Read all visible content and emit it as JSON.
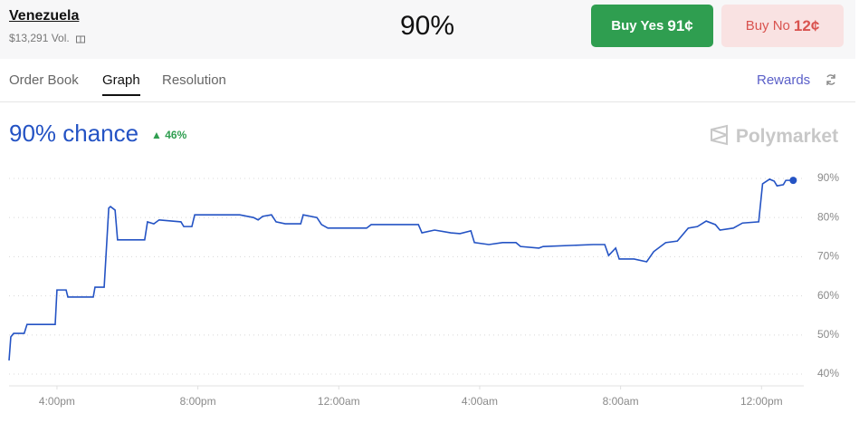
{
  "header": {
    "market": "Venezuela",
    "volume": "$13,291 Vol.",
    "probability": "90%"
  },
  "buttons": {
    "yes": {
      "label": "Buy Yes",
      "price": "91¢"
    },
    "no": {
      "label": "Buy No",
      "price": "12¢"
    }
  },
  "tabs": [
    "Order Book",
    "Graph",
    "Resolution"
  ],
  "rewards": "Rewards",
  "brand": "Polymarket",
  "chart_data": {
    "type": "line",
    "title": "90% chance",
    "change": "46%",
    "x": [
      14.64,
      14.69,
      14.77,
      15.07,
      15.15,
      15.95,
      16.0,
      16.26,
      16.31,
      17.03,
      17.08,
      17.34,
      17.47,
      17.52,
      17.65,
      17.72,
      18.49,
      18.57,
      18.75,
      18.9,
      19.52,
      19.6,
      19.83,
      19.91,
      21.19,
      21.58,
      21.71,
      21.84,
      22.09,
      22.22,
      22.48,
      22.92,
      22.99,
      23.38,
      23.51,
      23.69,
      24.79,
      24.92,
      26.26,
      26.36,
      26.72,
      27.18,
      27.44,
      27.75,
      27.85,
      28.26,
      28.65,
      29.03,
      29.16,
      29.68,
      29.8,
      31.22,
      31.55,
      31.66,
      31.86,
      31.96,
      32.38,
      32.74,
      32.94,
      33.28,
      33.61,
      33.92,
      34.18,
      34.43,
      34.69,
      34.82,
      35.2,
      35.46,
      35.92,
      36.03,
      36.23,
      36.36,
      36.44,
      36.62,
      36.69,
      36.9
    ],
    "series": [
      {
        "color": "#2453c4",
        "values": [
          43.5,
          49.5,
          50.4,
          50.4,
          52.7,
          52.7,
          61.5,
          61.5,
          59.7,
          59.7,
          62.2,
          62.2,
          82.4,
          82.8,
          81.9,
          74.3,
          74.3,
          78.9,
          78.4,
          79.4,
          78.9,
          77.7,
          77.7,
          80.7,
          80.7,
          80.0,
          79.4,
          80.3,
          80.7,
          78.9,
          78.4,
          78.4,
          80.7,
          80.0,
          78.2,
          77.3,
          77.3,
          78.2,
          78.2,
          76.1,
          76.8,
          76.1,
          75.9,
          76.6,
          73.6,
          73.1,
          73.6,
          73.6,
          72.6,
          72.2,
          72.6,
          73.1,
          73.1,
          70.3,
          72.2,
          69.4,
          69.4,
          68.7,
          71.3,
          73.6,
          74.0,
          77.3,
          77.7,
          79.1,
          78.2,
          76.8,
          77.3,
          78.6,
          78.9,
          88.6,
          89.8,
          89.3,
          88.1,
          88.4,
          89.5,
          89.5
        ]
      }
    ],
    "xlim": [
      14.64,
      37.2
    ],
    "xticks": [
      {
        "value": 16,
        "label": "4:00pm"
      },
      {
        "value": 20,
        "label": "8:00pm"
      },
      {
        "value": 24,
        "label": "12:00am"
      },
      {
        "value": 28,
        "label": "4:00am"
      },
      {
        "value": 32,
        "label": "8:00am"
      },
      {
        "value": 36,
        "label": "12:00pm"
      }
    ],
    "ylim": [
      37,
      93
    ],
    "yticks": [
      {
        "value": 40,
        "label": "40%"
      },
      {
        "value": 50,
        "label": "50%"
      },
      {
        "value": 60,
        "label": "60%"
      },
      {
        "value": 70,
        "label": "70%"
      },
      {
        "value": 80,
        "label": "80%"
      },
      {
        "value": 90,
        "label": "90%"
      }
    ],
    "grid": true
  }
}
